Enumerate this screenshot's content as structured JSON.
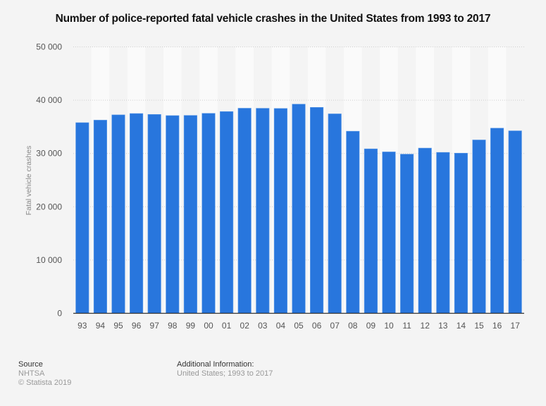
{
  "chart_data": {
    "type": "bar",
    "title": "Number of police-reported fatal vehicle crashes in the United States from 1993 to 2017",
    "xlabel": "",
    "ylabel": "Fatal vehicle crashes",
    "ylim": [
      0,
      50000
    ],
    "yticks": [
      0,
      10000,
      20000,
      30000,
      40000,
      50000
    ],
    "ytick_labels": [
      "0",
      "10 000",
      "20 000",
      "30 000",
      "40 000",
      "50 000"
    ],
    "grid": true,
    "bar_color": "#2876dd",
    "categories": [
      "93",
      "94",
      "95",
      "96",
      "97",
      "98",
      "99",
      "00",
      "01",
      "02",
      "03",
      "04",
      "05",
      "06",
      "07",
      "08",
      "09",
      "10",
      "11",
      "12",
      "13",
      "14",
      "15",
      "16",
      "17"
    ],
    "values": [
      35780,
      36254,
      37241,
      37494,
      37324,
      37107,
      37140,
      37526,
      37862,
      38491,
      38477,
      38444,
      39252,
      38648,
      37435,
      34172,
      30862,
      30296,
      29867,
      31006,
      30203,
      30056,
      32539,
      34748,
      34247
    ]
  },
  "footer": {
    "source_heading": "Source",
    "source_name": "NHTSA",
    "copyright": "© Statista 2019",
    "additional_heading": "Additional Information:",
    "additional_text": "United States; 1993 to 2017"
  }
}
